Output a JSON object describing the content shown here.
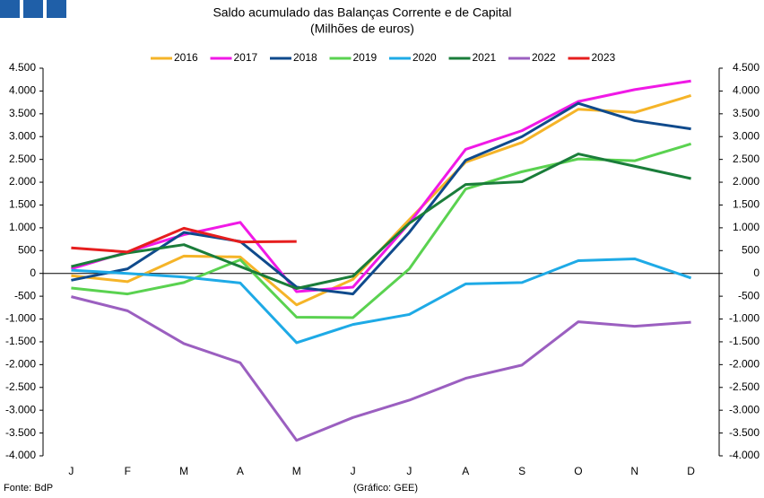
{
  "chart_data": {
    "type": "line",
    "title": "Saldo acumulado das Balanças Corrente e de Capital",
    "subtitle": "(Milhões de euros)",
    "source": "Fonte: BdP",
    "credit": "(Gráfico: GEE)",
    "categories": [
      "J",
      "F",
      "M",
      "A",
      "M",
      "J",
      "J",
      "A",
      "S",
      "O",
      "N",
      "D"
    ],
    "ylim": [
      -4000,
      4500
    ],
    "yticks": [
      {
        "value": -4000,
        "label": "-4.000"
      },
      {
        "value": -3500,
        "label": "-3.500"
      },
      {
        "value": -3000,
        "label": "-3.000"
      },
      {
        "value": -2500,
        "label": "-2.500"
      },
      {
        "value": -2000,
        "label": "-2.000"
      },
      {
        "value": -1500,
        "label": "-1.500"
      },
      {
        "value": -1000,
        "label": "-1.000"
      },
      -500,
      0,
      500,
      {
        "value": 1000,
        "label": "1.000"
      },
      {
        "value": 1500,
        "label": "1.500"
      },
      {
        "value": 2000,
        "label": "2.000"
      },
      {
        "value": 2500,
        "label": "2.500"
      },
      {
        "value": 3000,
        "label": "3.000"
      },
      {
        "value": 3500,
        "label": "3.500"
      },
      {
        "value": 4000,
        "label": "4.000"
      },
      {
        "value": 4500,
        "label": "4.500"
      }
    ],
    "legend": "top",
    "series": [
      {
        "name": "2016",
        "color": "#f5b428",
        "values": [
          -50,
          -180,
          380,
          360,
          -690,
          -130,
          1180,
          2440,
          2870,
          3600,
          3530,
          3900
        ]
      },
      {
        "name": "2017",
        "color": "#f019e6",
        "values": [
          100,
          470,
          850,
          1120,
          -400,
          -300,
          1100,
          2720,
          3130,
          3770,
          4030,
          4220
        ]
      },
      {
        "name": "2018",
        "color": "#0f4a8c",
        "values": [
          -150,
          100,
          900,
          700,
          -300,
          -450,
          900,
          2480,
          3000,
          3730,
          3350,
          3170
        ]
      },
      {
        "name": "2019",
        "color": "#5ad250",
        "values": [
          -320,
          -450,
          -200,
          300,
          -960,
          -970,
          100,
          1850,
          2230,
          2510,
          2470,
          2840
        ]
      },
      {
        "name": "2020",
        "color": "#1eaae6",
        "values": [
          70,
          0,
          -80,
          -210,
          -1520,
          -1120,
          -900,
          -230,
          -200,
          280,
          320,
          -100
        ]
      },
      {
        "name": "2021",
        "color": "#1a7d3a",
        "values": [
          150,
          450,
          630,
          150,
          -330,
          -60,
          1100,
          1950,
          2010,
          2620,
          2350,
          2080
        ]
      },
      {
        "name": "2022",
        "color": "#9b5fc0",
        "values": [
          -510,
          -820,
          -1540,
          -1960,
          -3660,
          -3160,
          -2780,
          -2300,
          -2010,
          -1060,
          -1160,
          -1070
        ]
      },
      {
        "name": "2023",
        "color": "#e61e1e",
        "values": [
          560,
          470,
          990,
          690,
          700,
          null,
          null,
          null,
          null,
          null,
          null,
          null
        ]
      }
    ]
  }
}
